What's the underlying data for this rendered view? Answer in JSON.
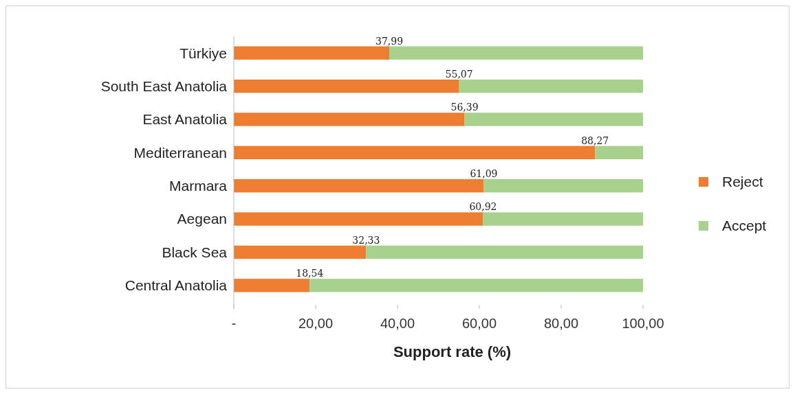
{
  "chart_data": {
    "type": "bar",
    "orientation": "horizontal",
    "stacked": true,
    "xlabel": "Support rate (%)",
    "categories": [
      "Türkiye",
      "South East Anatolia",
      "East Anatolia",
      "Mediterranean",
      "Marmara",
      "Aegean",
      "Black Sea",
      "Central Anatolia"
    ],
    "series": [
      {
        "name": "Reject",
        "color": "#ed7d31",
        "values": [
          37.99,
          55.07,
          56.39,
          88.27,
          61.09,
          60.92,
          32.33,
          18.54
        ],
        "value_labels": [
          "37,99",
          "55,07",
          "56,39",
          "88,27",
          "61,09",
          "60,92",
          "32,33",
          "18,54"
        ]
      },
      {
        "name": "Accept",
        "color": "#a9d18e",
        "values": [
          62.01,
          44.93,
          43.61,
          11.73,
          38.91,
          39.08,
          67.67,
          81.46
        ]
      }
    ],
    "xlim": [
      0,
      100
    ],
    "xticks": [
      {
        "value": 0,
        "label": "-"
      },
      {
        "value": 20,
        "label": "20,00"
      },
      {
        "value": 40,
        "label": "40,00"
      },
      {
        "value": 60,
        "label": "60,00"
      },
      {
        "value": 80,
        "label": "80,00"
      },
      {
        "value": 100,
        "label": "100,00"
      }
    ],
    "legend": "right",
    "grid": false
  }
}
